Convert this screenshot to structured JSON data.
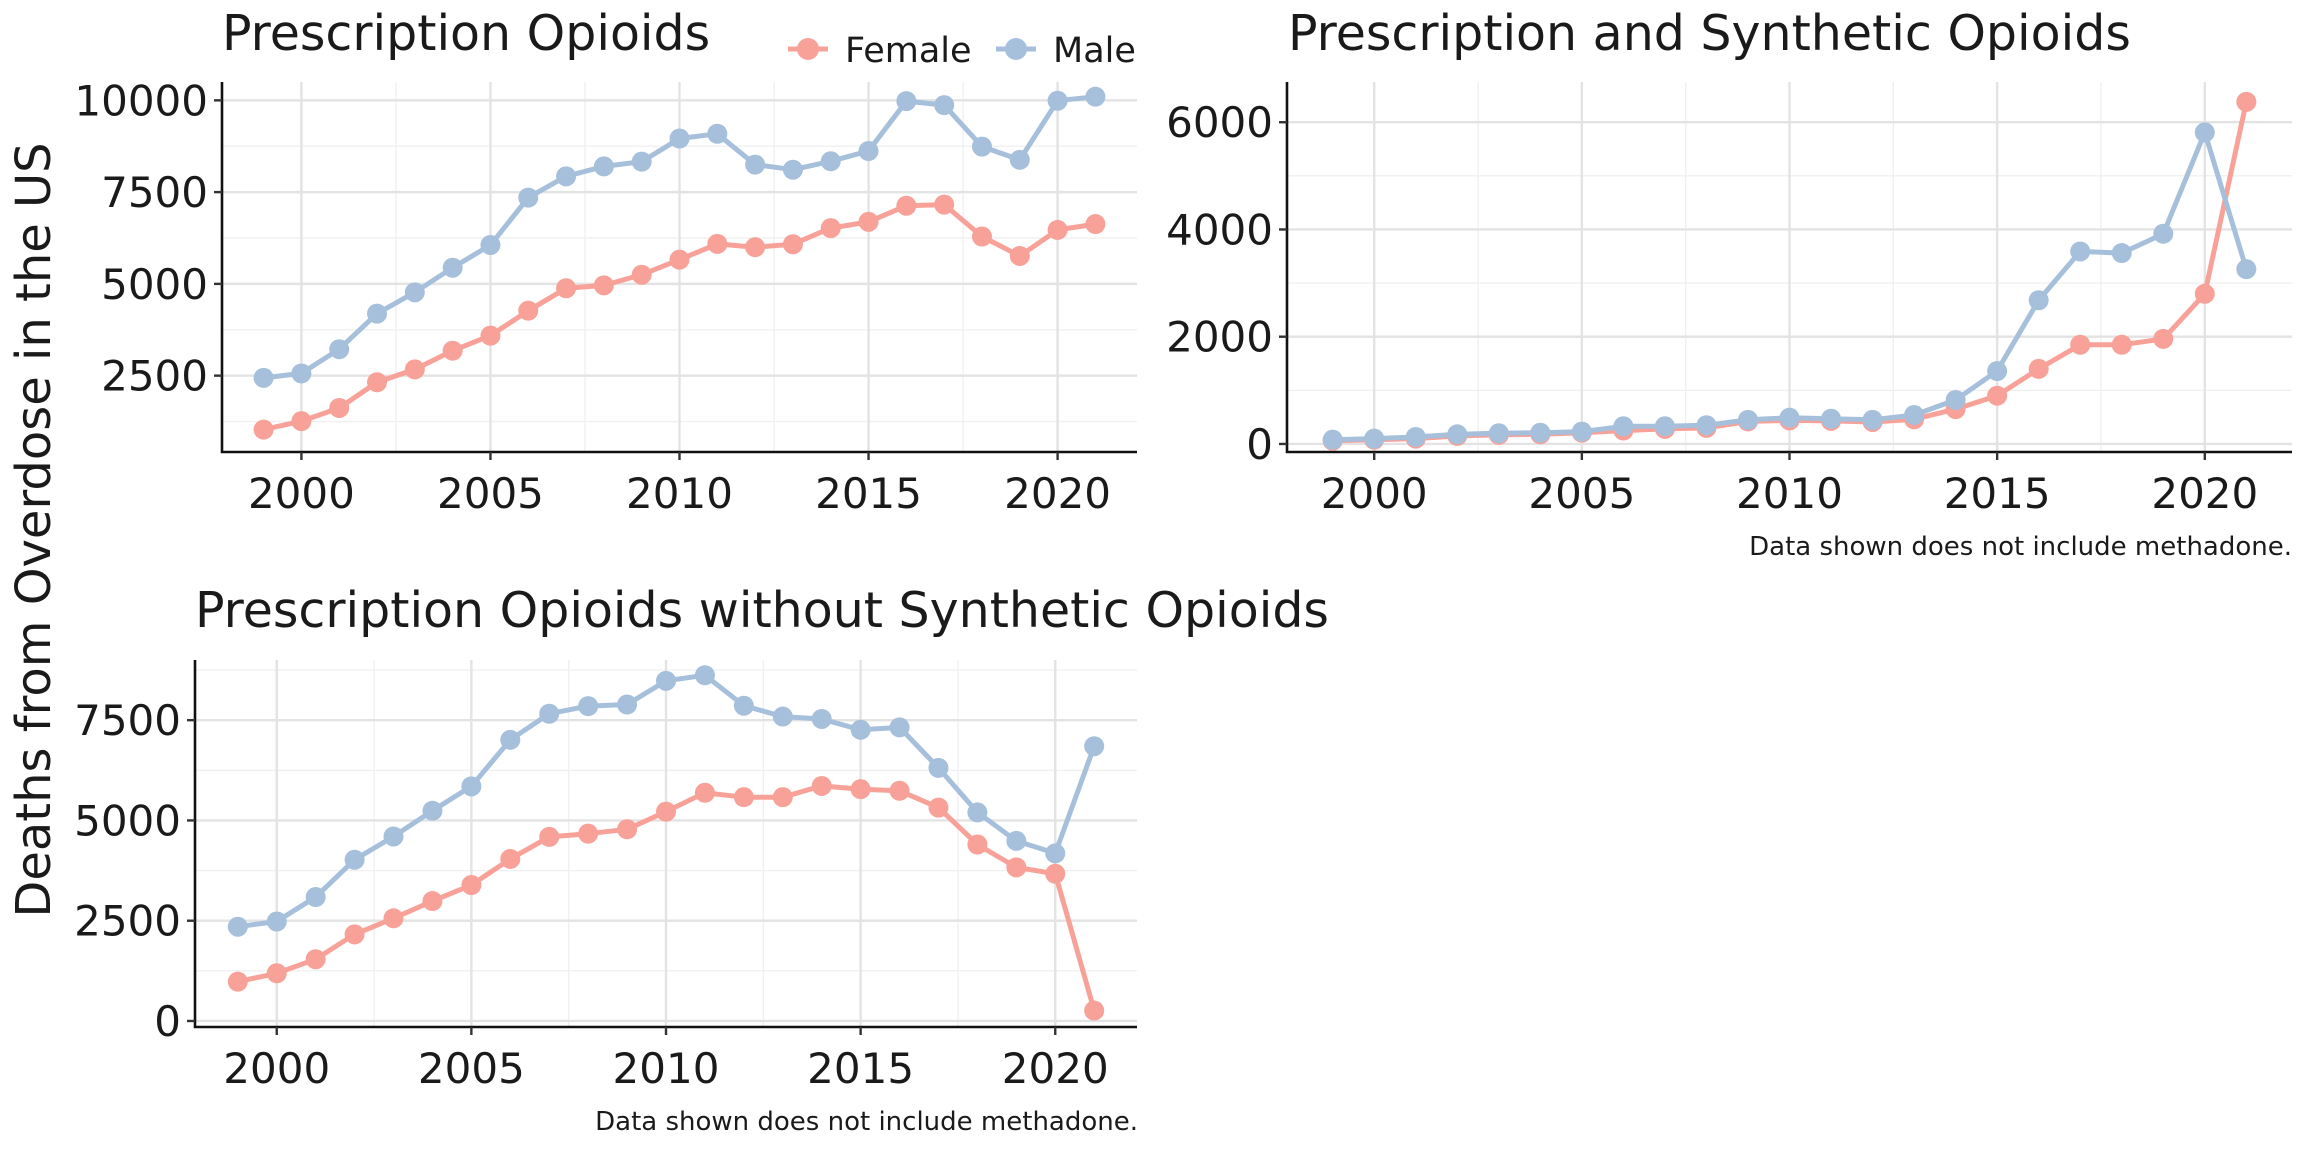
{
  "y_axis_label": "Deaths from Overdose in the US",
  "legend": {
    "items": [
      {
        "label": "Female",
        "color": "#F8A199"
      },
      {
        "label": "Male",
        "color": "#A6C0DC"
      }
    ]
  },
  "colors": {
    "female": "#F8A199",
    "male": "#A6C0DC"
  },
  "chart_data": [
    {
      "type": "line",
      "title": "Prescription Opioids",
      "caption": "",
      "xlabel": "",
      "ylabel": "Deaths from Overdose in the US",
      "x": [
        1999,
        2000,
        2001,
        2002,
        2003,
        2004,
        2005,
        2006,
        2007,
        2008,
        2009,
        2010,
        2011,
        2012,
        2013,
        2014,
        2015,
        2016,
        2017,
        2018,
        2019,
        2020,
        2021
      ],
      "xlim": [
        1997.9,
        2022.1
      ],
      "ylim": [
        420,
        10500
      ],
      "xticks": [
        2000,
        2005,
        2010,
        2015,
        2020
      ],
      "yticks": [
        2500,
        5000,
        7500,
        10000
      ],
      "grid": true,
      "series": [
        {
          "name": "Female",
          "values": [
            1030,
            1260,
            1620,
            2320,
            2670,
            3180,
            3590,
            4270,
            4880,
            4960,
            5250,
            5660,
            6090,
            6000,
            6080,
            6520,
            6690,
            7130,
            7160,
            6290,
            5760,
            6470,
            6630
          ]
        },
        {
          "name": "Male",
          "values": [
            2440,
            2560,
            3220,
            4190,
            4770,
            5440,
            6060,
            7350,
            7930,
            8200,
            8330,
            8960,
            9090,
            8250,
            8110,
            8340,
            8620,
            9980,
            9870,
            8740,
            8380,
            9990,
            10100
          ]
        }
      ]
    },
    {
      "type": "line",
      "title": "Prescription and Synthetic Opioids",
      "caption": "Data shown does not include methadone.",
      "xlabel": "",
      "ylabel": "",
      "x": [
        1999,
        2000,
        2001,
        2002,
        2003,
        2004,
        2005,
        2006,
        2007,
        2008,
        2009,
        2010,
        2011,
        2012,
        2013,
        2014,
        2015,
        2016,
        2017,
        2018,
        2019,
        2020,
        2021
      ],
      "xlim": [
        1997.9,
        2022.1
      ],
      "ylim": [
        -150,
        6750
      ],
      "xticks": [
        2000,
        2005,
        2010,
        2015,
        2020
      ],
      "yticks": [
        0,
        2000,
        4000,
        6000
      ],
      "grid": true,
      "series": [
        {
          "name": "Female",
          "values": [
            60,
            80,
            100,
            150,
            170,
            180,
            210,
            250,
            280,
            300,
            420,
            440,
            430,
            410,
            460,
            650,
            900,
            1400,
            1850,
            1850,
            1960,
            2800,
            6380
          ]
        },
        {
          "name": "Male",
          "values": [
            80,
            100,
            130,
            180,
            200,
            210,
            230,
            330,
            330,
            350,
            450,
            490,
            470,
            450,
            540,
            820,
            1360,
            2680,
            3590,
            3560,
            3920,
            5810,
            3260
          ]
        }
      ]
    },
    {
      "type": "line",
      "title": "Prescription Opioids without Synthetic Opioids",
      "caption": "Data shown does not include methadone.",
      "xlabel": "",
      "ylabel": "",
      "x": [
        1999,
        2000,
        2001,
        2002,
        2003,
        2004,
        2005,
        2006,
        2007,
        2008,
        2009,
        2010,
        2011,
        2012,
        2013,
        2014,
        2015,
        2016,
        2017,
        2018,
        2019,
        2020,
        2021
      ],
      "xlim": [
        1997.9,
        2022.1
      ],
      "ylim": [
        -150,
        9000
      ],
      "xticks": [
        2000,
        2005,
        2010,
        2015,
        2020
      ],
      "yticks": [
        0,
        2500,
        5000,
        7500
      ],
      "grid": true,
      "series": [
        {
          "name": "Female",
          "values": [
            980,
            1190,
            1540,
            2160,
            2560,
            2990,
            3390,
            4040,
            4590,
            4670,
            4780,
            5220,
            5690,
            5580,
            5580,
            5860,
            5780,
            5740,
            5320,
            4400,
            3830,
            3670,
            260
          ]
        },
        {
          "name": "Male",
          "values": [
            2350,
            2480,
            3090,
            4020,
            4600,
            5240,
            5850,
            7010,
            7660,
            7850,
            7890,
            8480,
            8620,
            7860,
            7590,
            7530,
            7260,
            7320,
            6310,
            5200,
            4490,
            4180,
            6850
          ]
        }
      ]
    }
  ]
}
